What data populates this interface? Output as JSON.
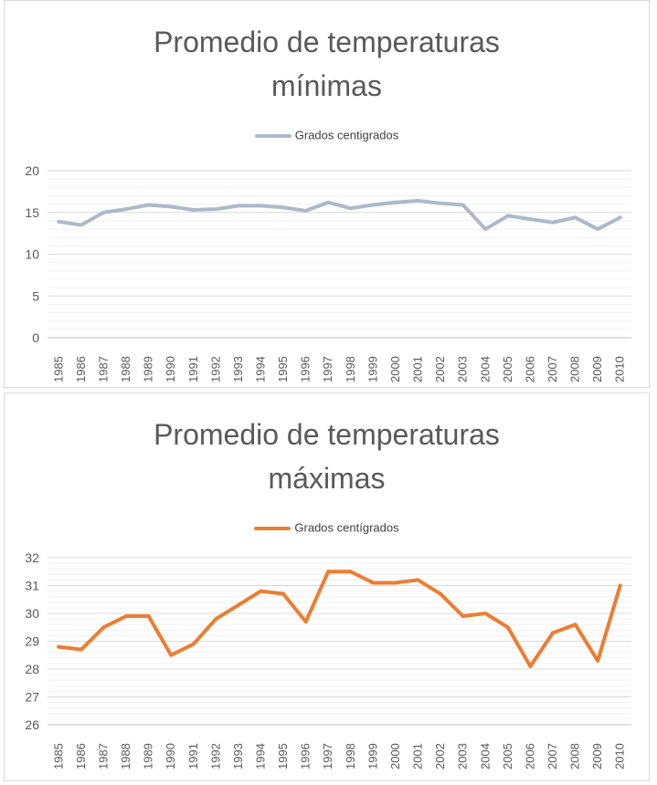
{
  "chart_data": [
    {
      "type": "line",
      "title_line1": "Promedio de temperaturas",
      "title_line2": "mínimas",
      "color": "#adb9ca",
      "ylim": [
        0,
        20
      ],
      "yticks": [
        0,
        5,
        10,
        15,
        20
      ],
      "minor_step": 1,
      "categories": [
        "1985",
        "1986",
        "1987",
        "1988",
        "1989",
        "1990",
        "1991",
        "1992",
        "1993",
        "1994",
        "1995",
        "1996",
        "1997",
        "1998",
        "1999",
        "2000",
        "2001",
        "2002",
        "2003",
        "2004",
        "2005",
        "2006",
        "2007",
        "2008",
        "2009",
        "2010"
      ],
      "series": [
        {
          "name": "Grados centigrados",
          "values": [
            13.9,
            13.5,
            15.0,
            15.4,
            15.9,
            15.7,
            15.3,
            15.4,
            15.8,
            15.8,
            15.6,
            15.2,
            16.2,
            15.5,
            15.9,
            16.2,
            16.4,
            16.1,
            15.9,
            13.0,
            14.6,
            14.2,
            13.8,
            14.4,
            13.0,
            14.4
          ]
        }
      ],
      "legend": "top",
      "grid": true
    },
    {
      "type": "line",
      "title_line1": "Promedio de temperaturas",
      "title_line2": "máximas",
      "color": "#ed7d31",
      "ylim": [
        26,
        32
      ],
      "yticks": [
        26,
        27,
        28,
        29,
        30,
        31,
        32
      ],
      "minor_step": 0.2,
      "categories": [
        "1985",
        "1986",
        "1987",
        "1988",
        "1989",
        "1990",
        "1991",
        "1992",
        "1993",
        "1994",
        "1995",
        "1996",
        "1997",
        "1998",
        "1999",
        "2000",
        "2001",
        "2002",
        "2003",
        "2004",
        "2005",
        "2006",
        "2007",
        "2008",
        "2009",
        "2010"
      ],
      "series": [
        {
          "name": "Grados centígrados",
          "values": [
            28.8,
            28.7,
            29.5,
            29.9,
            29.9,
            28.5,
            28.9,
            29.8,
            30.3,
            30.8,
            30.7,
            29.7,
            31.5,
            31.5,
            31.1,
            31.1,
            31.2,
            30.7,
            29.9,
            30.0,
            29.5,
            28.1,
            29.3,
            29.6,
            28.3,
            31.0
          ]
        }
      ],
      "legend": "top",
      "grid": true
    }
  ]
}
